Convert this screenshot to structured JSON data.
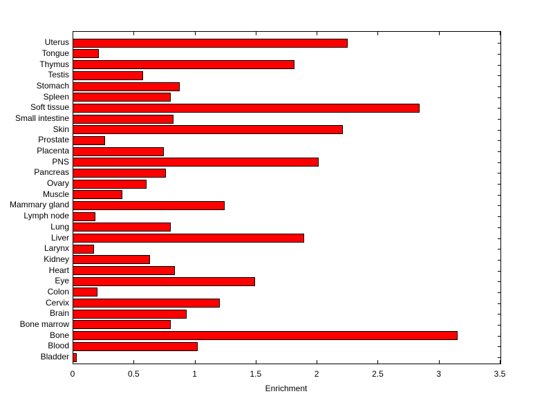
{
  "chart_data": {
    "type": "bar",
    "orientation": "horizontal",
    "title": "",
    "xlabel": "Enrichment",
    "ylabel": "",
    "xlim": [
      0,
      3.5
    ],
    "xticks": [
      0,
      0.5,
      1,
      1.5,
      2,
      2.5,
      3,
      3.5
    ],
    "xtick_labels": [
      "0",
      "0.5",
      "1",
      "1.5",
      "2",
      "2.5",
      "3",
      "3.5"
    ],
    "grid": false,
    "legend": "none",
    "bar_color": "#ff0000",
    "bar_edge_color": "#000000",
    "axis_color": "#000000",
    "background_color": "#ffffff",
    "categories": [
      "Uterus",
      "Tongue",
      "Thymus",
      "Testis",
      "Stomach",
      "Spleen",
      "Soft tissue",
      "Small intestine",
      "Skin",
      "Prostate",
      "Placenta",
      "PNS",
      "Pancreas",
      "Ovary",
      "Muscle",
      "Mammary gland",
      "Lymph node",
      "Lung",
      "Liver",
      "Larynx",
      "Kidney",
      "Heart",
      "Eye",
      "Colon",
      "Cervix",
      "Brain",
      "Bone marrow",
      "Bone",
      "Blood",
      "Bladder"
    ],
    "values": [
      2.25,
      0.21,
      1.81,
      0.57,
      0.87,
      0.8,
      2.84,
      0.82,
      2.21,
      0.26,
      0.74,
      2.01,
      0.76,
      0.6,
      0.4,
      1.24,
      0.18,
      0.8,
      1.89,
      0.17,
      0.63,
      0.83,
      1.49,
      0.2,
      1.2,
      0.93,
      0.8,
      3.15,
      1.02,
      0.03
    ]
  }
}
